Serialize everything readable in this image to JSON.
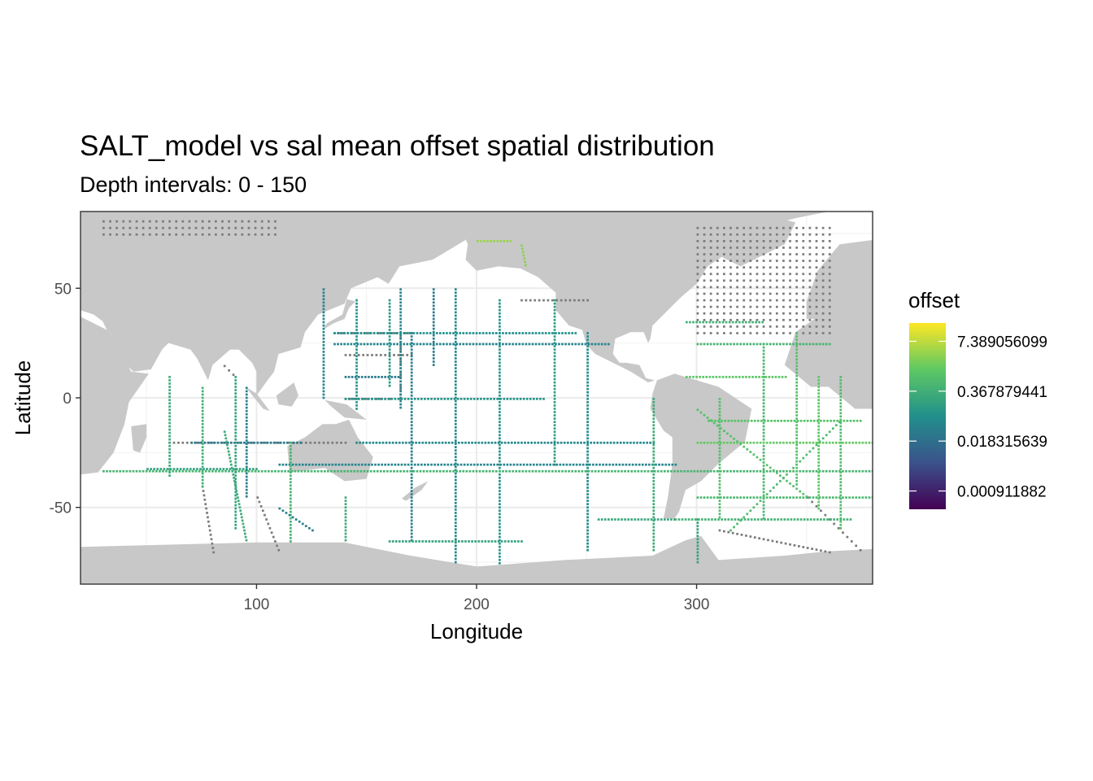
{
  "chart_data": {
    "type": "heatmap",
    "title": "SALT_model vs sal mean offset spatial distribution",
    "subtitle": "Depth intervals: 0 - 150",
    "xlabel": "Longitude",
    "ylabel": "Latitude",
    "xlim": [
      20,
      380
    ],
    "ylim": [
      -85,
      85
    ],
    "x_ticks": [
      100,
      200,
      300
    ],
    "y_ticks": [
      -50,
      0,
      50
    ],
    "grid": true,
    "legend": {
      "title": "offset",
      "position": "right",
      "scale": "log",
      "labels": [
        "7.389056099",
        "0.367879441",
        "0.018315639",
        "0.000911882"
      ],
      "label_values": [
        7.389056099,
        0.367879441,
        0.018315639,
        0.000911882
      ],
      "colors": [
        "#440154",
        "#3b528b",
        "#21908c",
        "#5dc863",
        "#fde725"
      ]
    },
    "land_color": "#c8c8c8",
    "na_color": "#7a7a7a",
    "tracks": [
      {
        "lon": [
          130,
          130
        ],
        "lat": [
          50,
          0
        ],
        "offset": 0.05
      },
      {
        "lon": [
          145,
          145
        ],
        "lat": [
          45,
          -5
        ],
        "offset": 0.1
      },
      {
        "lon": [
          165,
          165
        ],
        "lat": [
          50,
          -5
        ],
        "offset": 0.05
      },
      {
        "lon": [
          160,
          160
        ],
        "lat": [
          45,
          5
        ],
        "offset": 0.12
      },
      {
        "lon": [
          180,
          180
        ],
        "lat": [
          50,
          15
        ],
        "offset": 0.03
      },
      {
        "lon": [
          190,
          190
        ],
        "lat": [
          50,
          -75
        ],
        "offset": 0.06
      },
      {
        "lon": [
          210,
          210
        ],
        "lat": [
          45,
          -75
        ],
        "offset": 0.1
      },
      {
        "lon": [
          235,
          235
        ],
        "lat": [
          45,
          -30
        ],
        "offset": 0.15
      },
      {
        "lon": [
          250,
          250
        ],
        "lat": [
          30,
          -70
        ],
        "offset": 0.08
      },
      {
        "lon": [
          170,
          170
        ],
        "lat": [
          30,
          -65
        ],
        "offset": 0.04
      },
      {
        "lon": [
          135,
          260
        ],
        "lat": [
          25,
          25
        ],
        "offset": 0.05
      },
      {
        "lon": [
          135,
          245
        ],
        "lat": [
          30,
          30
        ],
        "offset": 0.08
      },
      {
        "lon": [
          140,
          165
        ],
        "lat": [
          10,
          10
        ],
        "offset": 0.03
      },
      {
        "lon": [
          140,
          230
        ],
        "lat": [
          0,
          0
        ],
        "offset": 0.1
      },
      {
        "lon": [
          145,
          280
        ],
        "lat": [
          -20,
          -20
        ],
        "offset": 0.06
      },
      {
        "lon": [
          30,
          380
        ],
        "lat": [
          -33,
          -33
        ],
        "offset": 0.5
      },
      {
        "lon": [
          110,
          290
        ],
        "lat": [
          -30,
          -30
        ],
        "offset": 0.05
      },
      {
        "lon": [
          70,
          120
        ],
        "lat": [
          -20,
          -20
        ],
        "offset": 0.03
      },
      {
        "lon": [
          50,
          100
        ],
        "lat": [
          -32,
          -32
        ],
        "offset": 0.2
      },
      {
        "lon": [
          60,
          60
        ],
        "lat": [
          10,
          -35
        ],
        "offset": 0.3
      },
      {
        "lon": [
          75,
          75
        ],
        "lat": [
          5,
          -40
        ],
        "offset": 0.4
      },
      {
        "lon": [
          90,
          90
        ],
        "lat": [
          10,
          -60
        ],
        "offset": 0.2
      },
      {
        "lon": [
          95,
          95
        ],
        "lat": [
          5,
          -45
        ],
        "offset": 0.04
      },
      {
        "lon": [
          115,
          115
        ],
        "lat": [
          -20,
          -65
        ],
        "offset": 0.5
      },
      {
        "lon": [
          140,
          140
        ],
        "lat": [
          -45,
          -65
        ],
        "offset": 0.3
      },
      {
        "lon": [
          280,
          280
        ],
        "lat": [
          0,
          -70
        ],
        "offset": 0.3
      },
      {
        "lon": [
          300,
          300
        ],
        "lat": [
          -55,
          -75
        ],
        "offset": 0.2
      },
      {
        "lon": [
          310,
          310
        ],
        "lat": [
          0,
          -55
        ],
        "offset": 0.8
      },
      {
        "lon": [
          330,
          330
        ],
        "lat": [
          25,
          -55
        ],
        "offset": 0.6
      },
      {
        "lon": [
          345,
          345
        ],
        "lat": [
          30,
          -40
        ],
        "offset": 0.9
      },
      {
        "lon": [
          355,
          355
        ],
        "lat": [
          10,
          -50
        ],
        "offset": 1.2
      },
      {
        "lon": [
          365,
          365
        ],
        "lat": [
          10,
          -60
        ],
        "offset": 0.7
      },
      {
        "lon": [
          300,
          380
        ],
        "lat": [
          -20,
          -20
        ],
        "offset": 1.5
      },
      {
        "lon": [
          305,
          375
        ],
        "lat": [
          -10,
          -10
        ],
        "offset": 1.0
      },
      {
        "lon": [
          300,
          380
        ],
        "lat": [
          -45,
          -45
        ],
        "offset": 0.6
      },
      {
        "lon": [
          290,
          370
        ],
        "lat": [
          -55,
          -55
        ],
        "offset": 0.4
      },
      {
        "lon": [
          295,
          340
        ],
        "lat": [
          10,
          10
        ],
        "offset": 1.2
      },
      {
        "lon": [
          300,
          360
        ],
        "lat": [
          25,
          25
        ],
        "offset": 0.5
      },
      {
        "lon": [
          295,
          330
        ],
        "lat": [
          35,
          35
        ],
        "offset": 0.4
      },
      {
        "lon": [
          300,
          350
        ],
        "lat": [
          -5,
          -45
        ],
        "offset": 0.9
      },
      {
        "lon": [
          315,
          365
        ],
        "lat": [
          -60,
          -10
        ],
        "offset": 0.7
      },
      {
        "lon": [
          85,
          95
        ],
        "lat": [
          -15,
          -65
        ],
        "offset": 0.3
      },
      {
        "lon": [
          110,
          125
        ],
        "lat": [
          -50,
          -60
        ],
        "offset": 0.04
      },
      {
        "lon": [
          160,
          220
        ],
        "lat": [
          -65,
          -65
        ],
        "offset": 0.2
      },
      {
        "lon": [
          255,
          290
        ],
        "lat": [
          -55,
          -55
        ],
        "offset": 0.25
      },
      {
        "lon": [
          220,
          222
        ],
        "lat": [
          70,
          60
        ],
        "offset": 3.0
      },
      {
        "lon": [
          200,
          215
        ],
        "lat": [
          72,
          72
        ],
        "offset": 4.0
      }
    ],
    "na_tracks": [
      {
        "lon": [
          140,
          160
        ],
        "lat": [
          0,
          0
        ]
      },
      {
        "lon": [
          140,
          170
        ],
        "lat": [
          20,
          20
        ]
      },
      {
        "lon": [
          135,
          170
        ],
        "lat": [
          30,
          30
        ]
      },
      {
        "lon": [
          165,
          165
        ],
        "lat": [
          0,
          30
        ]
      },
      {
        "lon": [
          60,
          140
        ],
        "lat": [
          -20,
          -20
        ]
      },
      {
        "lon": [
          75,
          80
        ],
        "lat": [
          -40,
          -70
        ]
      },
      {
        "lon": [
          100,
          110
        ],
        "lat": [
          -45,
          -70
        ]
      },
      {
        "lon": [
          310,
          360
        ],
        "lat": [
          -60,
          -70
        ]
      },
      {
        "lon": [
          350,
          375
        ],
        "lat": [
          -45,
          -70
        ]
      },
      {
        "lon": [
          220,
          250
        ],
        "lat": [
          45,
          45
        ]
      },
      {
        "lon": [
          85,
          90
        ],
        "lat": [
          15,
          10
        ]
      }
    ],
    "na_regions": [
      {
        "lon": [
          300,
          360
        ],
        "lat": [
          30,
          80
        ]
      },
      {
        "lon": [
          25,
          60
        ],
        "lat": [
          -55,
          -75
        ]
      },
      {
        "lon": [
          345,
          375
        ],
        "lat": [
          -60,
          -75
        ]
      },
      {
        "lon": [
          30,
          110
        ],
        "lat": [
          75,
          83
        ]
      }
    ]
  }
}
